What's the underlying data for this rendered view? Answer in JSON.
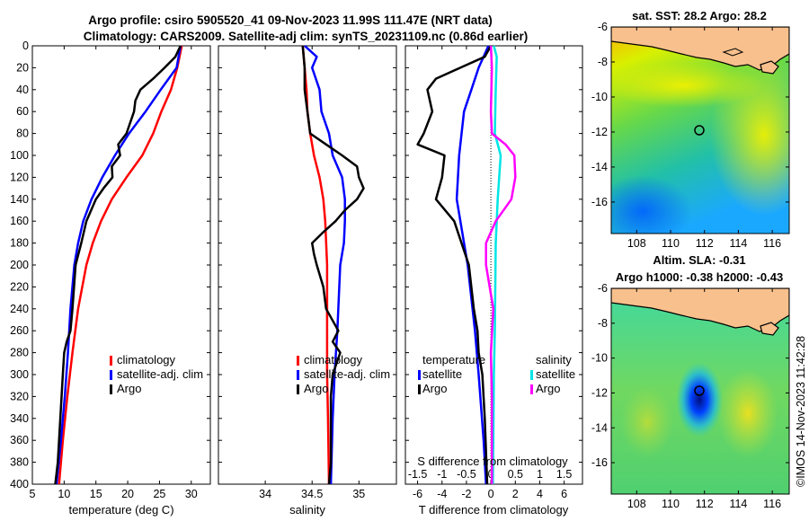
{
  "figure": {
    "title_line1": "Argo profile: csiro 5905520_41 09-Nov-2023 11.99S 111.47E (NRT data)",
    "title_line2": "Climatology: CARS2009. Satellite-adj clim: synTS_20231109.nc (0.86d earlier)",
    "copyright": "©IMOS 14-Nov-2023 11:42:28"
  },
  "colors": {
    "climatology": "#ff0000",
    "satellite": "#0000ff",
    "argo": "#000000",
    "salinity_satellite": "#00e5e5",
    "salinity_argo": "#ff00ff",
    "land": "#f8c08c"
  },
  "chart_data": [
    {
      "type": "line",
      "id": "temperature",
      "xlabel": "temperature (deg C)",
      "xlim": [
        5,
        33
      ],
      "ylim": [
        400,
        0
      ],
      "xticks": [
        5,
        10,
        15,
        20,
        25,
        30
      ],
      "xtick_labels": [
        "5",
        "10",
        "15",
        "20",
        "25",
        "30"
      ],
      "yticks": [
        0,
        20,
        40,
        60,
        80,
        100,
        120,
        140,
        160,
        180,
        200,
        220,
        240,
        260,
        280,
        300,
        320,
        340,
        360,
        380,
        400
      ],
      "ytick_labels": [
        "0",
        "20",
        "40",
        "60",
        "80",
        "100",
        "120",
        "140",
        "160",
        "180",
        "200",
        "220",
        "240",
        "260",
        "280",
        "300",
        "320",
        "340",
        "360",
        "380",
        "400"
      ],
      "legend": [
        "climatology",
        "satellite-adj. clim",
        "Argo"
      ],
      "series": [
        {
          "name": "climatology",
          "color": "#ff0000",
          "depth": [
            0,
            20,
            40,
            60,
            80,
            100,
            120,
            140,
            160,
            180,
            200,
            240,
            280,
            320,
            360,
            400
          ],
          "values": [
            28.5,
            27.8,
            26.8,
            25.3,
            24.0,
            22.3,
            19.8,
            17.5,
            15.8,
            14.5,
            13.5,
            12.2,
            11.3,
            10.5,
            9.8,
            9.2
          ]
        },
        {
          "name": "satellite-adj. clim",
          "color": "#0000ff",
          "depth": [
            0,
            20,
            40,
            60,
            80,
            100,
            120,
            140,
            160,
            180,
            200,
            240,
            280,
            320,
            360,
            400
          ],
          "values": [
            28.3,
            27.7,
            25.2,
            22.8,
            20.2,
            18.0,
            16.0,
            14.3,
            13.0,
            12.2,
            11.6,
            11.0,
            10.6,
            10.1,
            9.5,
            8.8
          ]
        },
        {
          "name": "Argo",
          "color": "#000000",
          "depth": [
            0,
            10,
            20,
            30,
            40,
            50,
            60,
            80,
            90,
            100,
            110,
            120,
            130,
            140,
            160,
            180,
            200,
            240,
            260,
            270,
            280,
            300,
            340,
            380,
            400
          ],
          "values": [
            28.3,
            27.5,
            25.8,
            24.0,
            22.0,
            21.2,
            21.0,
            19.8,
            18.5,
            18.8,
            17.5,
            17.6,
            16.2,
            15.0,
            13.5,
            12.7,
            11.8,
            11.3,
            11.0,
            10.4,
            10.0,
            9.8,
            9.4,
            9.0,
            8.6
          ]
        }
      ]
    },
    {
      "type": "line",
      "id": "salinity",
      "xlabel": "salinity",
      "xlim": [
        33.5,
        35.4
      ],
      "ylim": [
        400,
        0
      ],
      "xticks": [
        34,
        34.5,
        35
      ],
      "xtick_labels": [
        "34",
        "34.5",
        "35"
      ],
      "legend": [
        "climatology",
        "satellite-adj. clim",
        "Argo"
      ],
      "series": [
        {
          "name": "climatology",
          "color": "#ff0000",
          "depth": [
            0,
            20,
            40,
            60,
            80,
            100,
            120,
            140,
            160,
            200,
            260,
            300,
            340,
            400
          ],
          "values": [
            34.4,
            34.42,
            34.44,
            34.45,
            34.48,
            34.52,
            34.58,
            34.62,
            34.64,
            34.66,
            34.66,
            34.66,
            34.67,
            34.68
          ]
        },
        {
          "name": "satellite-adj. clim",
          "color": "#0000ff",
          "depth": [
            0,
            10,
            20,
            40,
            60,
            80,
            100,
            120,
            140,
            160,
            180,
            200,
            260,
            300,
            340,
            400
          ],
          "values": [
            34.42,
            34.55,
            34.5,
            34.58,
            34.6,
            34.68,
            34.72,
            34.82,
            34.85,
            34.85,
            34.84,
            34.8,
            34.77,
            34.74,
            34.72,
            34.7
          ]
        },
        {
          "name": "Argo",
          "color": "#000000",
          "depth": [
            0,
            20,
            40,
            60,
            80,
            90,
            100,
            110,
            120,
            130,
            140,
            150,
            160,
            170,
            180,
            190,
            200,
            220,
            240,
            260,
            270,
            280,
            300,
            320,
            340,
            360,
            380,
            400
          ],
          "values": [
            34.4,
            34.42,
            34.42,
            34.45,
            34.48,
            34.65,
            34.82,
            34.98,
            35.0,
            35.05,
            34.98,
            34.85,
            34.75,
            34.62,
            34.5,
            34.52,
            34.55,
            34.62,
            34.65,
            34.78,
            34.72,
            34.8,
            34.72,
            34.7,
            34.7,
            34.7,
            34.7,
            34.68
          ]
        }
      ]
    },
    {
      "type": "line",
      "id": "difference",
      "xlabel": "T difference from climatology",
      "xlabel_top": "S difference from climatology",
      "xlim": [
        -7,
        7.5
      ],
      "ylim": [
        400,
        0
      ],
      "xticks": [
        -6,
        -4,
        -2,
        0,
        2,
        4,
        6
      ],
      "xtick_labels": [
        "-6",
        "-4",
        "-2",
        "0",
        "2",
        "4",
        "6"
      ],
      "sxticks": [
        -6,
        -4,
        -2,
        0,
        2,
        4,
        6
      ],
      "sxtick_labels": [
        "-1.5",
        "-1",
        "-0.5",
        "0",
        "0.5",
        "1",
        "1.5"
      ],
      "legend_temperature": {
        "title": "temperature",
        "items": [
          "satellite",
          "Argo"
        ]
      },
      "legend_salinity": {
        "title": "salinity",
        "items": [
          "satellite",
          "Argo"
        ]
      },
      "series": [
        {
          "name": "T satellite",
          "color": "#0000ff",
          "depth": [
            0,
            20,
            40,
            60,
            100,
            140,
            200,
            260,
            300,
            360,
            400
          ],
          "values": [
            -0.2,
            -1.0,
            -1.6,
            -2.2,
            -2.6,
            -2.8,
            -1.9,
            -1.3,
            -1.0,
            -0.6,
            -0.4
          ]
        },
        {
          "name": "T Argo",
          "color": "#000000",
          "depth": [
            0,
            10,
            20,
            30,
            40,
            60,
            80,
            90,
            100,
            120,
            140,
            160,
            200,
            240,
            260,
            280,
            300,
            340,
            400
          ],
          "values": [
            0.0,
            -0.5,
            -2.5,
            -4.5,
            -5.2,
            -4.8,
            -5.5,
            -6.0,
            -3.8,
            -4.0,
            -4.5,
            -3.0,
            -1.8,
            -1.4,
            -1.1,
            -1.0,
            -0.7,
            -0.5,
            -0.3
          ]
        },
        {
          "name": "S satellite",
          "color": "#00e5e5",
          "depth": [
            0,
            10,
            40,
            80,
            100,
            140,
            180,
            260,
            300,
            360,
            400
          ],
          "values": [
            0.06,
            0.12,
            0.1,
            0.08,
            0.2,
            0.14,
            0.1,
            0.08,
            0.06,
            0.05,
            0.04
          ]
        },
        {
          "name": "S Argo",
          "color": "#ff00ff",
          "depth": [
            0,
            20,
            60,
            80,
            90,
            100,
            120,
            140,
            160,
            180,
            200,
            240,
            280,
            320,
            360,
            400
          ],
          "values": [
            0.0,
            0.02,
            0.0,
            0.02,
            0.3,
            0.48,
            0.5,
            0.42,
            0.1,
            -0.1,
            -0.1,
            0.05,
            0.0,
            0.02,
            0.02,
            0.02
          ]
        }
      ]
    },
    {
      "type": "heatmap",
      "id": "sst_map",
      "title": "sat. SST: 28.2 Argo: 28.2",
      "xlim": [
        106.5,
        117
      ],
      "ylim": [
        -17.8,
        -6
      ],
      "xticks": [
        108,
        110,
        112,
        114,
        116
      ],
      "xtick_labels": [
        "108",
        "110",
        "112",
        "114",
        "116"
      ],
      "yticks": [
        -6,
        -8,
        -10,
        -12,
        -14,
        -16
      ],
      "ytick_labels": [
        "-6",
        "-8",
        "-10",
        "-12",
        "-14",
        "-16"
      ],
      "marker": {
        "lon": 111.47,
        "lat": -11.99
      }
    },
    {
      "type": "heatmap",
      "id": "sla_map",
      "title_line1": "Altim. SLA: -0.31",
      "title_line2": "Argo h1000: -0.38 h2000: -0.43",
      "xlim": [
        106.5,
        117
      ],
      "ylim": [
        -17.8,
        -6
      ],
      "xticks": [
        108,
        110,
        112,
        114,
        116
      ],
      "xtick_labels": [
        "108",
        "110",
        "112",
        "114",
        "116"
      ],
      "yticks": [
        -6,
        -8,
        -10,
        -12,
        -14,
        -16
      ],
      "ytick_labels": [
        "-6",
        "-8",
        "-10",
        "-12",
        "-14",
        "-16"
      ],
      "marker": {
        "lon": 111.47,
        "lat": -11.99
      }
    }
  ]
}
